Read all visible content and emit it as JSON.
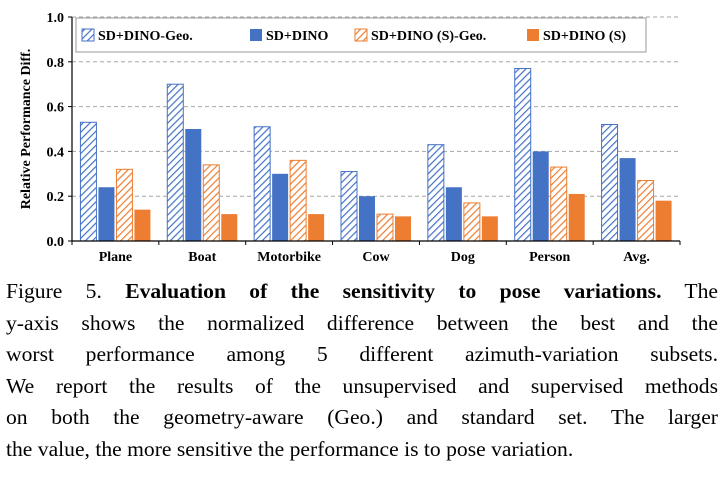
{
  "chart_data": {
    "type": "bar",
    "ylabel": "Relative Performance Diff.",
    "xlabel": "",
    "ylim": [
      0.0,
      1.0
    ],
    "yticks": [
      "0.0",
      "0.2",
      "0.4",
      "0.6",
      "0.8",
      "1.0"
    ],
    "grid": true,
    "legend_position": "top",
    "categories": [
      "Plane",
      "Boat",
      "Motorbike",
      "Cow",
      "Dog",
      "Person",
      "Avg."
    ],
    "series": [
      {
        "name": "SD+DINO-Geo.",
        "values": [
          0.53,
          0.7,
          0.51,
          0.31,
          0.43,
          0.77,
          0.52
        ],
        "color": "#4472c4",
        "pattern": "hatched"
      },
      {
        "name": "SD+DINO",
        "values": [
          0.24,
          0.5,
          0.3,
          0.2,
          0.24,
          0.4,
          0.37
        ],
        "color": "#4472c4",
        "pattern": "solid"
      },
      {
        "name": "SD+DINO (S)-Geo.",
        "values": [
          0.32,
          0.34,
          0.36,
          0.12,
          0.17,
          0.33,
          0.27
        ],
        "color": "#ed7d31",
        "pattern": "hatched"
      },
      {
        "name": "SD+DINO (S)",
        "values": [
          0.14,
          0.12,
          0.12,
          0.11,
          0.11,
          0.21,
          0.18
        ],
        "color": "#ed7d31",
        "pattern": "solid"
      }
    ]
  },
  "caption": {
    "label": "Figure 5.",
    "title": "Evaluation of the sensitivity to pose variations.",
    "line1_end": "The",
    "lines": [
      "y-axis shows the normalized difference between the best and the",
      "worst performance among 5 different azimuth-variation subsets.",
      "We report the results of the unsupervised and supervised methods",
      "on both the geometry-aware (Geo.) and standard set. The larger",
      "the value, the more sensitive the performance is to pose variation."
    ]
  }
}
